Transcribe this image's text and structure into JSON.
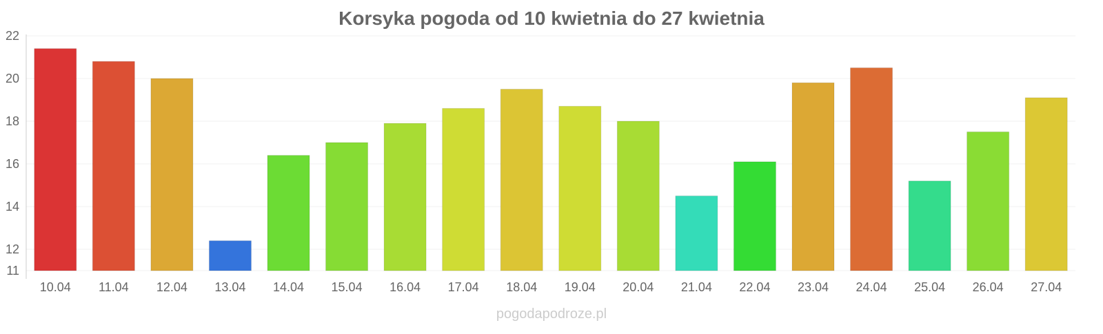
{
  "chart_data": {
    "type": "bar",
    "title": "Korsyka pogoda od 10 kwietnia do 27 kwietnia",
    "xlabel": "",
    "ylabel": "",
    "ylim": [
      11,
      22
    ],
    "yticks": [
      11,
      12,
      14,
      16,
      18,
      20,
      22
    ],
    "grid": true,
    "categories": [
      "10.04",
      "11.04",
      "12.04",
      "13.04",
      "14.04",
      "15.04",
      "16.04",
      "17.04",
      "18.04",
      "19.04",
      "20.04",
      "21.04",
      "22.04",
      "23.04",
      "24.04",
      "25.04",
      "26.04",
      "27.04"
    ],
    "values": [
      21.4,
      20.8,
      20.0,
      12.4,
      16.4,
      17.0,
      17.9,
      18.6,
      19.5,
      18.7,
      18.0,
      14.5,
      16.1,
      19.8,
      20.5,
      15.2,
      17.5,
      19.1
    ],
    "colors": [
      "#db3434",
      "#dc5034",
      "#dca834",
      "#3474dc",
      "#6cdc34",
      "#86dc34",
      "#a8dc34",
      "#cfdc34",
      "#dcc534",
      "#cfdc34",
      "#a8dc34",
      "#34dcb8",
      "#34dc34",
      "#dca834",
      "#dc6c34",
      "#34dc8c",
      "#8adc34",
      "#dcc834"
    ],
    "watermark": "pogodapodroze.pl"
  }
}
